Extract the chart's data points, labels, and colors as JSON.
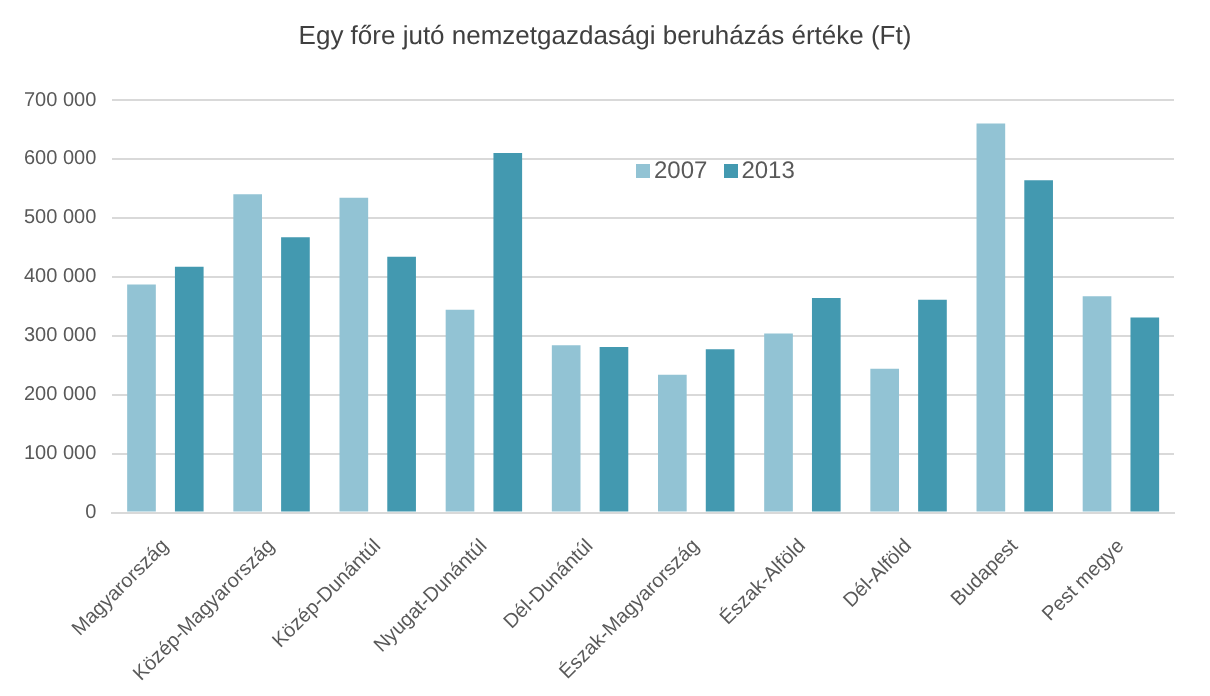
{
  "chart_data": {
    "type": "bar",
    "title": "Egy főre jutó nemzetgazdasági beruházás értéke (Ft)",
    "categories": [
      "Magyarország",
      "Közép-Magyarország",
      "Közép-Dunántúl",
      "Nyugat-Dunántúl",
      "Dél-Dunántúl",
      "Észak-Magyarország",
      "Észak-Alföld",
      "Dél-Alföld",
      "Budapest",
      "Pest megye"
    ],
    "series": [
      {
        "name": "2007",
        "color": "#92c3d4",
        "values": [
          387000,
          540000,
          534000,
          344000,
          284000,
          234000,
          304000,
          244000,
          660000,
          367000
        ]
      },
      {
        "name": "2013",
        "color": "#4399b0",
        "values": [
          417000,
          467000,
          434000,
          610000,
          281000,
          277000,
          364000,
          361000,
          564000,
          331000
        ]
      }
    ],
    "ylim": [
      0,
      700000
    ],
    "yticks": [
      {
        "value": 0,
        "label": "0"
      },
      {
        "value": 100000,
        "label": "100 000"
      },
      {
        "value": 200000,
        "label": "200 000"
      },
      {
        "value": 300000,
        "label": "300 000"
      },
      {
        "value": 400000,
        "label": "400 000"
      },
      {
        "value": 500000,
        "label": "500 000"
      },
      {
        "value": 600000,
        "label": "600 000"
      },
      {
        "value": 700000,
        "label": "700 000"
      }
    ],
    "grid": "y",
    "legend": "top"
  }
}
